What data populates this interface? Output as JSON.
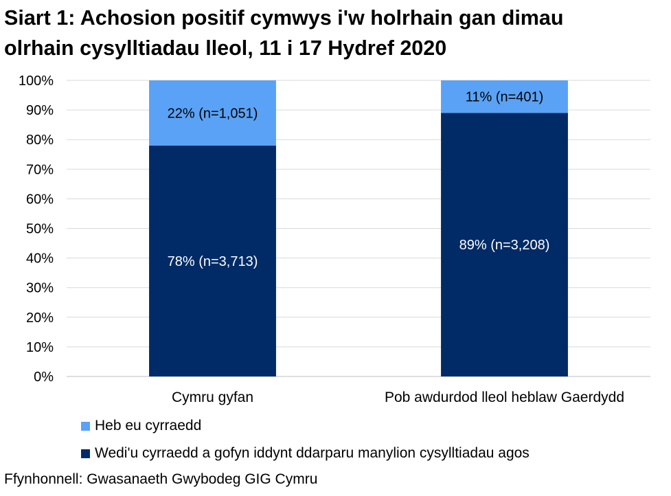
{
  "chart_data": {
    "type": "bar",
    "stacked": true,
    "percent_stacked": true,
    "title_lines": [
      "Siart 1: Achosion positif cymwys i'w holrhain gan dimau",
      "olrhain cysylltiadau lleol, 11 i 17 Hydref 2020"
    ],
    "categories": [
      "Cymru gyfan",
      "Pob awdurdod lleol heblaw Gaerdydd"
    ],
    "series": [
      {
        "name": "Wedi'u cyrraedd a gofyn iddynt ddarparu manylion cysylltiadau agos",
        "color": "#002b66",
        "values": [
          78,
          89
        ],
        "labels": [
          "78% (n=3,713)",
          "89% (n=3,208)"
        ],
        "label_color": "#ffffff"
      },
      {
        "name": "Heb eu cyrraedd",
        "color": "#5aa2f5",
        "values": [
          22,
          11
        ],
        "labels": [
          "22% (n=1,051)",
          "11% (n=401)"
        ],
        "label_color": "#000000"
      }
    ],
    "ylim": [
      0,
      100
    ],
    "yticks": [
      0,
      10,
      20,
      30,
      40,
      50,
      60,
      70,
      80,
      90,
      100
    ],
    "ytick_labels": [
      "0%",
      "10%",
      "20%",
      "30%",
      "40%",
      "50%",
      "60%",
      "70%",
      "80%",
      "90%",
      "100%"
    ],
    "grid": true,
    "grid_color": "#d9d9d9",
    "legend_position": "bottom-left",
    "legend_order": [
      "Heb eu cyrraedd",
      "Wedi'u cyrraedd a gofyn iddynt ddarparu manylion cysylltiadau agos"
    ]
  },
  "source": "Ffynhonnell: Gwasanaeth Gwybodeg GIG Cymru"
}
